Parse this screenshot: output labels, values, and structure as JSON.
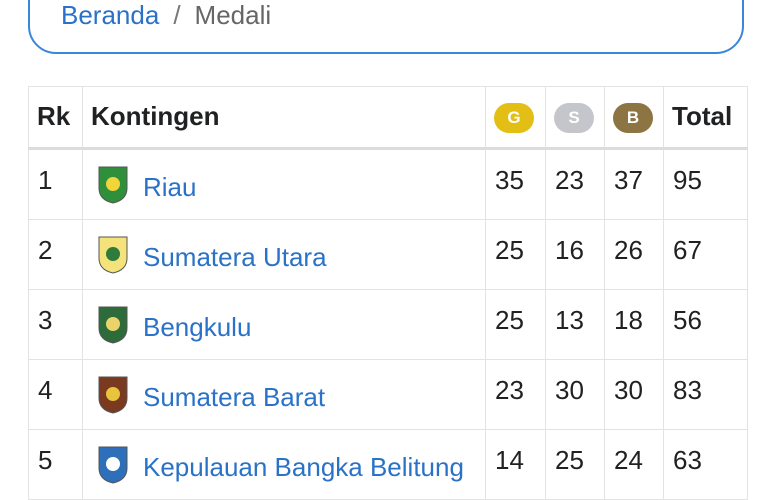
{
  "breadcrumb": {
    "home": "Beranda",
    "separator": "/",
    "current": "Medali"
  },
  "table": {
    "headers": [
      "Rk",
      "Kontingen",
      "G",
      "S",
      "B",
      "Total"
    ],
    "rows": [
      [
        "1",
        "Riau",
        "35",
        "23",
        "37",
        "95"
      ],
      [
        "2",
        "Sumatera Utara",
        "25",
        "16",
        "26",
        "67"
      ],
      [
        "3",
        "Bengkulu",
        "25",
        "13",
        "18",
        "56"
      ],
      [
        "4",
        "Sumatera Barat",
        "23",
        "30",
        "30",
        "83"
      ],
      [
        "5",
        "Kepulauan Bangka Belitung",
        "14",
        "25",
        "24",
        "63"
      ]
    ]
  }
}
